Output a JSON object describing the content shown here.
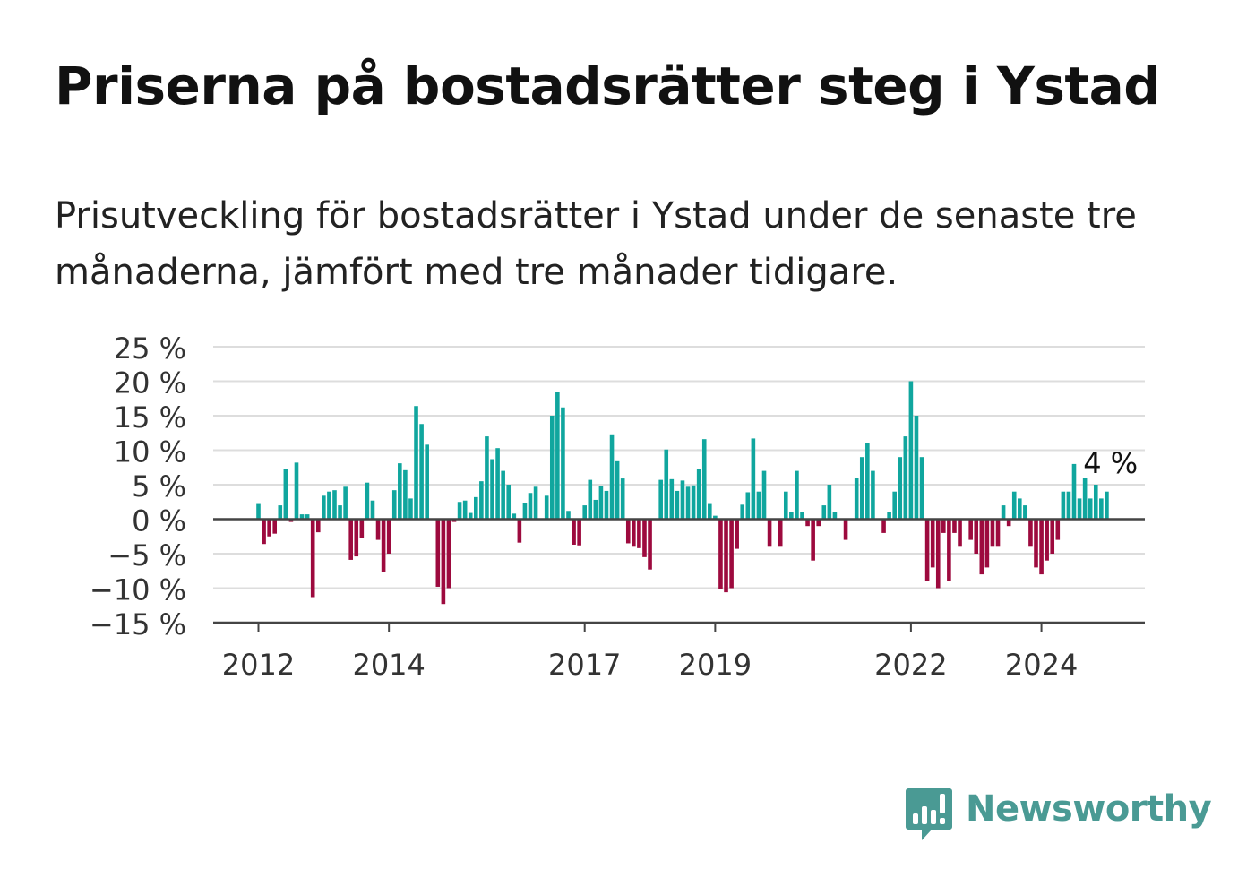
{
  "header": {
    "title": "Priserna på bostadsrätter steg i Ystad",
    "subtitle": "Prisutveckling för bostadsrätter i Ystad under de senaste tre månaderna, jämfört med tre månader tidigare."
  },
  "brand": {
    "name": "Newsworthy",
    "icon": "bar-chart-speech-bubble-icon",
    "color": "#4a9a94"
  },
  "chart_data": {
    "type": "bar",
    "y_unit": "%",
    "ylim": [
      -15,
      25
    ],
    "y_ticks": [
      -15,
      -10,
      -5,
      0,
      5,
      10,
      15,
      20,
      25
    ],
    "y_tick_labels": [
      "−15 %",
      "−10 %",
      "−5 %",
      "0 %",
      "5 %",
      "10 %",
      "15 %",
      "20 %",
      "25 %"
    ],
    "x_start": "2012-01",
    "x_ticks": [
      {
        "label": "2012",
        "x": "2012-01"
      },
      {
        "label": "2014",
        "x": "2014-01"
      },
      {
        "label": "2017",
        "x": "2017-01"
      },
      {
        "label": "2019",
        "x": "2019-01"
      },
      {
        "label": "2022",
        "x": "2022-01"
      },
      {
        "label": "2024",
        "x": "2024-01"
      }
    ],
    "grid": true,
    "colors": {
      "positive": "#10a69e",
      "negative": "#9d0a3e",
      "grid": "#dddddd",
      "axis": "#444444"
    },
    "annotation": {
      "text": "4 %",
      "x": "2024-11"
    },
    "values": [
      2.2,
      -3.6,
      -2.5,
      -2.1,
      2.0,
      7.3,
      -0.4,
      8.2,
      0.7,
      0.7,
      -11.3,
      -1.9,
      3.4,
      4.0,
      4.2,
      2.0,
      4.7,
      -5.9,
      -5.4,
      -2.7,
      5.3,
      2.7,
      -3.0,
      -7.6,
      -5.0,
      4.2,
      8.1,
      7.1,
      3.0,
      16.4,
      13.8,
      10.8,
      0.0,
      -9.8,
      -12.3,
      -10.0,
      -0.4,
      2.5,
      2.7,
      0.9,
      3.2,
      5.5,
      12.0,
      8.7,
      10.3,
      7.0,
      5.0,
      0.8,
      -3.4,
      2.4,
      3.8,
      4.7,
      0.0,
      3.4,
      15.0,
      18.5,
      16.2,
      1.2,
      -3.7,
      -3.8,
      2.0,
      5.7,
      2.8,
      4.8,
      4.1,
      12.3,
      8.4,
      5.9,
      -3.5,
      -4.0,
      -4.2,
      -5.5,
      -7.3,
      0.0,
      5.7,
      10.1,
      5.8,
      4.1,
      5.6,
      4.7,
      4.9,
      7.3,
      11.6,
      2.2,
      0.5,
      -10.1,
      -10.6,
      -10.0,
      -4.3,
      2.1,
      3.9,
      11.7,
      4.0,
      7.0,
      -4.0,
      0.0,
      -4.0,
      4.0,
      1.0,
      7.0,
      1.0,
      -1.0,
      -6.0,
      -1.0,
      2.0,
      5.0,
      1.0,
      0.0,
      -3.0,
      0.0,
      6.0,
      9.0,
      11.0,
      7.0,
      0.0,
      -2.0,
      1.0,
      4.0,
      9.0,
      12.0,
      20.0,
      15.0,
      9.0,
      -9.0,
      -7.0,
      -10.0,
      -2.0,
      -9.0,
      -2.0,
      -4.0,
      0.0,
      -3.0,
      -5.0,
      -8.0,
      -7.0,
      -4.0,
      -4.0,
      2.0,
      -1.0,
      4.0,
      3.0,
      2.0,
      -4.0,
      -7.0,
      -8.0,
      -6.0,
      -5.0,
      -3.0,
      4.0,
      4.0,
      8.0,
      3.0,
      6.0,
      3.0,
      5.0,
      3.0,
      4.0
    ]
  }
}
